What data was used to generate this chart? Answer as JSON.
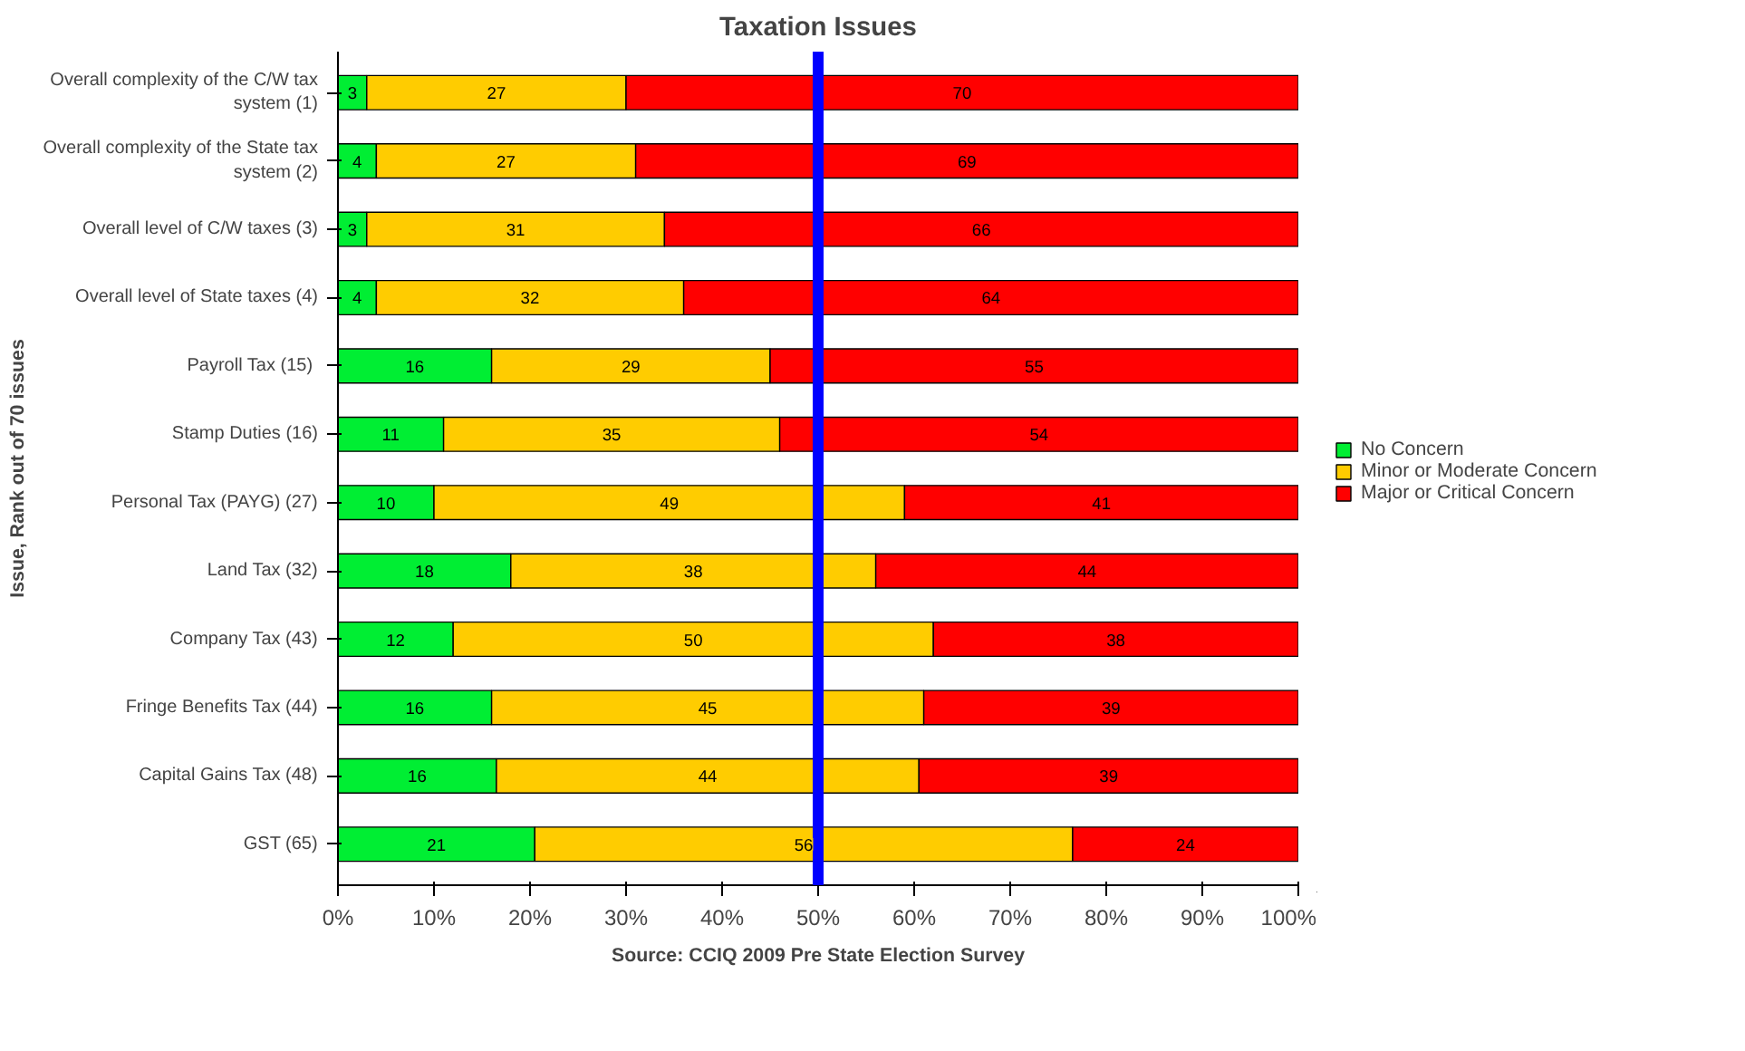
{
  "chart_data": {
    "type": "bar",
    "orientation": "horizontal",
    "stacked": true,
    "title": "Taxation Issues",
    "xlabel": "Source: CCIQ 2009 Pre State Election Survey",
    "ylabel": "Issue, Rank out of 70 issues",
    "categories": [
      "Overall complexity of the C/W tax system (1)",
      "Overall complexity of the State tax system (2)",
      "Overall level of C/W taxes (3)",
      "Overall level of State taxes (4)",
      "Payroll Tax  (15)",
      "Stamp Duties (16)",
      "Personal Tax (PAYG) (27)",
      "Land Tax (32)",
      "Company Tax (43)",
      "Fringe Benefits Tax (44)",
      "Capital Gains Tax (48)",
      "GST (65)"
    ],
    "series": [
      {
        "name": "No Concern",
        "color": "#00ee33",
        "values": [
          3,
          4,
          3,
          4,
          16,
          11,
          10,
          18,
          12,
          16,
          16.5,
          20.5
        ],
        "value_labels": [
          "3",
          "4",
          "3",
          "4",
          "16",
          "11",
          "10",
          "18",
          "12",
          "16",
          "16",
          "21"
        ]
      },
      {
        "name": "Minor or Moderate Concern",
        "color": "#ffcc00",
        "values": [
          27,
          27,
          31,
          32,
          29,
          35,
          49,
          38,
          50,
          45,
          44,
          56
        ],
        "value_labels": [
          "27",
          "27",
          "31",
          "32",
          "29",
          "35",
          "49",
          "38",
          "50",
          "45",
          "44",
          "56"
        ]
      },
      {
        "name": "Major or Critical Concern",
        "color": "#ff0000",
        "values": [
          70,
          69,
          66,
          64,
          55,
          54,
          41,
          44,
          38,
          39,
          39.5,
          23.5
        ],
        "value_labels": [
          "70",
          "69",
          "66",
          "64",
          "55",
          "54",
          "41",
          "44",
          "38",
          "39",
          "39",
          "24"
        ]
      }
    ],
    "xlim": [
      0,
      100
    ],
    "xticks": [
      {
        "value": 0,
        "label": "0%"
      },
      {
        "value": 10,
        "label": "10%"
      },
      {
        "value": 20,
        "label": "20%"
      },
      {
        "value": 30,
        "label": "30%"
      },
      {
        "value": 40,
        "label": "40%"
      },
      {
        "value": 50,
        "label": "50%"
      },
      {
        "value": 60,
        "label": "60%"
      },
      {
        "value": 70,
        "label": "70%"
      },
      {
        "value": 80,
        "label": "80%"
      },
      {
        "value": 90,
        "label": "90%"
      },
      {
        "value": 100,
        "label": "100%"
      }
    ],
    "ref_lines": [
      {
        "axis": "x",
        "value": 50,
        "color": "#0000ff"
      }
    ],
    "legend": "right",
    "grid": false
  }
}
